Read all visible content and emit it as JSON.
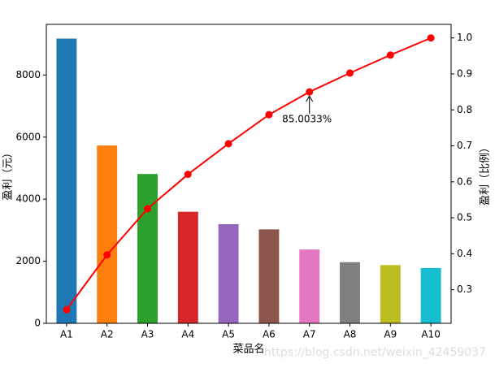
{
  "chart_data": {
    "type": "pareto",
    "xlabel": "菜品名",
    "ylabel": "盈利（元）",
    "y2label": "盈利（比例）",
    "categories": [
      "A1",
      "A2",
      "A3",
      "A4",
      "A5",
      "A6",
      "A7",
      "A8",
      "A9",
      "A10"
    ],
    "series": [
      {
        "type": "bar",
        "colors": [
          "#1f77b4",
          "#ff7f0e",
          "#2ca02c",
          "#d62728",
          "#9467bd",
          "#8c564b",
          "#e377c2",
          "#7f7f7f",
          "#bcbd22",
          "#17becf"
        ],
        "values": [
          9173,
          5729,
          4811,
          3594,
          3195,
          3026,
          2378,
          1970,
          1877,
          1782
        ]
      },
      {
        "type": "line",
        "axis": "y2",
        "color": "#ff0000",
        "values": [
          0.2444,
          0.397,
          0.5252,
          0.6209,
          0.706,
          0.7867,
          0.850033,
          0.9025,
          0.9525,
          1.0
        ]
      }
    ],
    "ylim": [
      0,
      9631.65
    ],
    "yticks": [
      0,
      2000,
      4000,
      6000,
      8000
    ],
    "y2lim": [
      0.2066,
      1.0378
    ],
    "y2ticks": [
      0.3,
      0.4,
      0.5,
      0.6,
      0.7,
      0.8,
      0.9,
      {
        "value": 1.0,
        "label": "1.0"
      }
    ],
    "annotation": {
      "text": "85.0033%",
      "x": "A7",
      "y": 0.850033
    },
    "watermark": "https://blog.csdn.net/weixin_42459037"
  }
}
